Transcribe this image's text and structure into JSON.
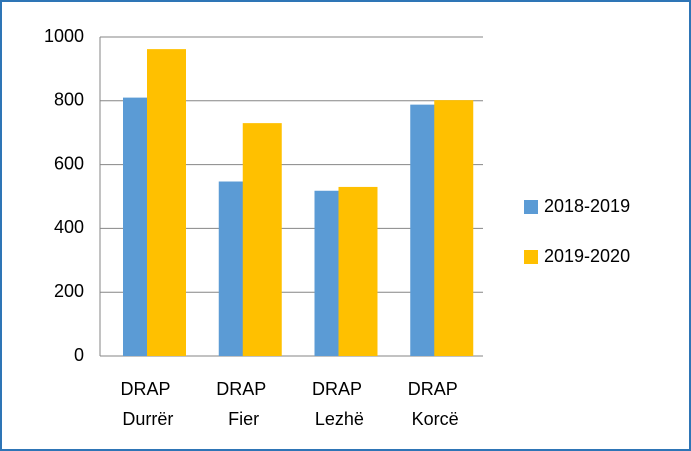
{
  "chart_data": {
    "type": "bar",
    "categories": [
      "DRAP Durrër",
      "DRAP Fier",
      "DRAP Lezhë",
      "DRAP Korcë"
    ],
    "series": [
      {
        "name": "2018-2019",
        "color": "#5b9bd5",
        "values": [
          810,
          547,
          518,
          788
        ]
      },
      {
        "name": "2019-2020",
        "color": "#ffc000",
        "values": [
          962,
          730,
          530,
          802
        ]
      }
    ],
    "ylim": [
      0,
      1000
    ],
    "yticks": [
      0,
      200,
      400,
      600,
      800,
      1000
    ],
    "grid": true,
    "legend": "right"
  }
}
